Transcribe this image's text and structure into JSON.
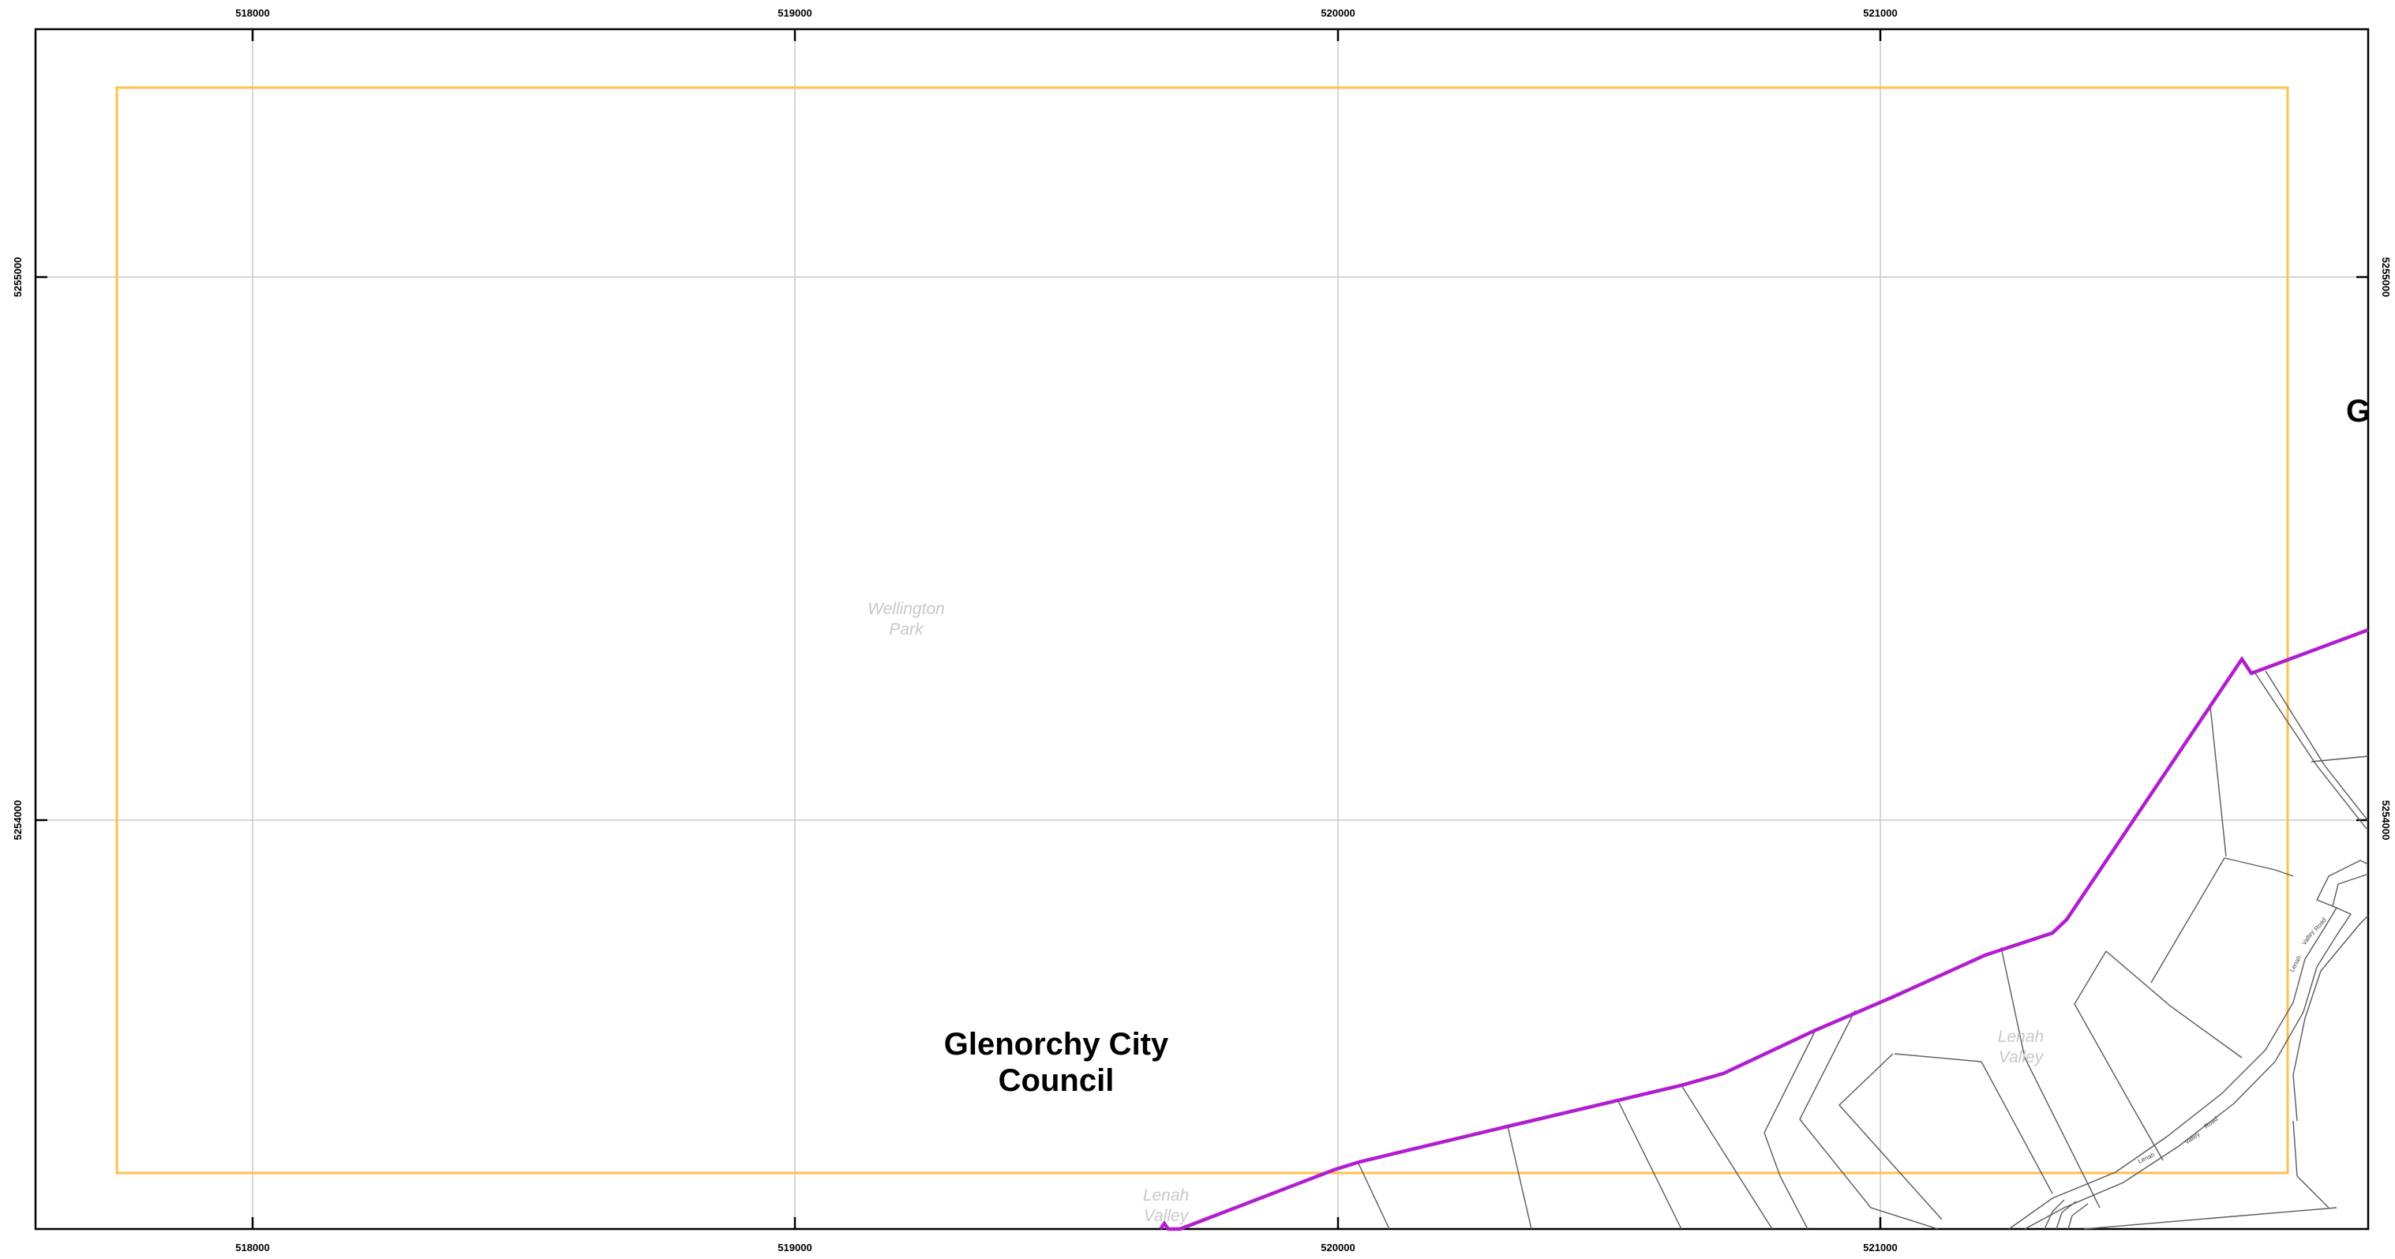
{
  "map": {
    "grid": {
      "x_ticks": [
        "518000",
        "519000",
        "520000",
        "521000"
      ],
      "y_ticks": [
        "5255000",
        "5254000"
      ]
    },
    "labels": {
      "council_line1": "Glenorchy City",
      "council_line2": "Council",
      "council_partial": "G",
      "wellington_line1": "Wellington",
      "wellington_line2": "Park",
      "lenah_center_line1": "Lenah",
      "lenah_center_line2": "Valley",
      "lenah_bottom_line1": "Lenah",
      "lenah_bottom_line2": "Valley",
      "road_1": "Lenah",
      "road_2": "Valley",
      "road_3": "Road"
    },
    "colors": {
      "frame": "#000000",
      "grid": "#c8c8c8",
      "extent_rectangle": "#ffc04d",
      "council_boundary": "#b01ed0",
      "parcel_lines": "#5a5a5a",
      "faint_labels": "#c8c8c8"
    }
  }
}
